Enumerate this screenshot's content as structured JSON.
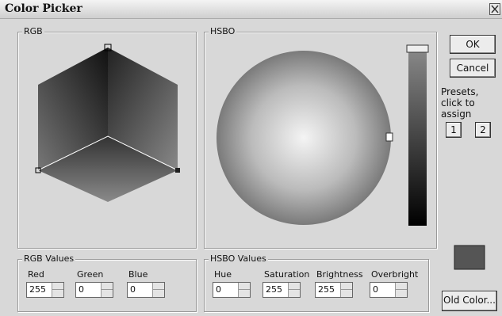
{
  "window": {
    "title": "Color Picker"
  },
  "rgb_panel": {
    "label": "RGB"
  },
  "hsbo_panel": {
    "label": "HSBO"
  },
  "buttons": {
    "ok": "OK",
    "cancel": "Cancel",
    "old_color": "Old Color..."
  },
  "presets": {
    "label": "Presets, click to assign",
    "slots": [
      "1",
      "2"
    ]
  },
  "rgb_values": {
    "label": "RGB Values",
    "fields": [
      {
        "label": "Red",
        "value": 255
      },
      {
        "label": "Green",
        "value": 0
      },
      {
        "label": "Blue",
        "value": 0
      }
    ]
  },
  "hsbo_values": {
    "label": "HSBO Values",
    "fields": [
      {
        "label": "Hue",
        "value": 0
      },
      {
        "label": "Saturation",
        "value": 255
      },
      {
        "label": "Brightness",
        "value": 255
      },
      {
        "label": "Overbright",
        "value": 0
      }
    ]
  }
}
